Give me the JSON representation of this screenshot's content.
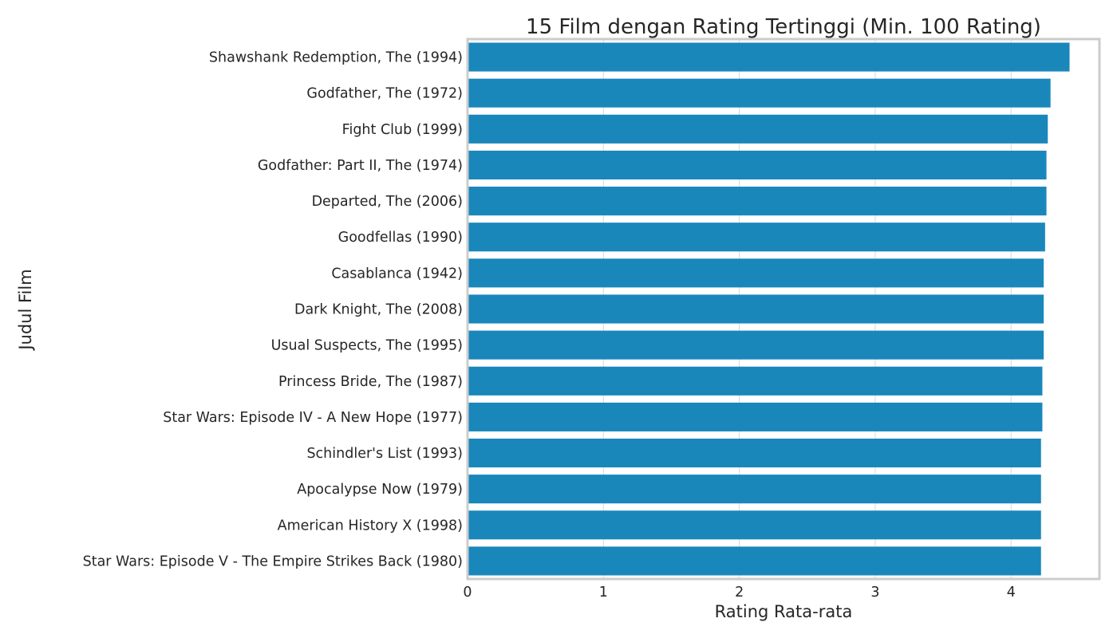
{
  "chart_data": {
    "type": "bar",
    "orientation": "horizontal",
    "title": "15 Film dengan Rating Tertinggi (Min. 100 Rating)",
    "xlabel": "Rating Rata-rata",
    "ylabel": "Judul Film",
    "xlim": [
      0,
      4.65
    ],
    "xticks": [
      0,
      1,
      2,
      3,
      4
    ],
    "grid": true,
    "bar_color": "#1a87bb",
    "categories": [
      "Shawshank Redemption, The (1994)",
      "Godfather, The (1972)",
      "Fight Club (1999)",
      "Godfather: Part II, The (1974)",
      "Departed, The (2006)",
      "Goodfellas (1990)",
      "Casablanca (1942)",
      "Dark Knight, The (2008)",
      "Usual Suspects, The (1995)",
      "Princess Bride, The (1987)",
      "Star Wars: Episode IV - A New Hope (1977)",
      "Schindler's List (1993)",
      "Apocalypse Now (1979)",
      "American History X (1998)",
      "Star Wars: Episode V - The Empire Strikes Back (1980)"
    ],
    "values": [
      4.43,
      4.29,
      4.27,
      4.26,
      4.26,
      4.25,
      4.24,
      4.24,
      4.24,
      4.23,
      4.23,
      4.22,
      4.22,
      4.22,
      4.22
    ]
  }
}
